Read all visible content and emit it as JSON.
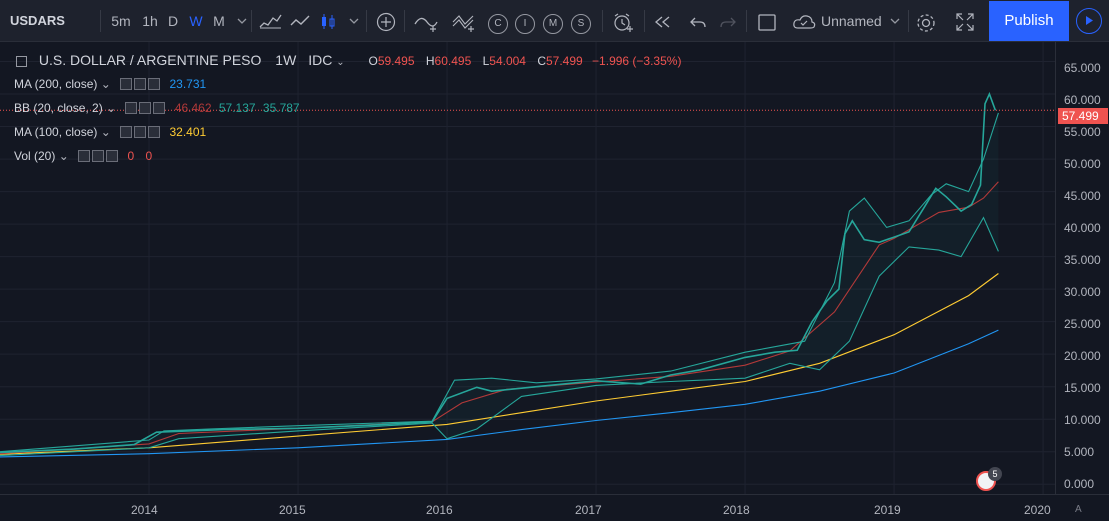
{
  "toolbar": {
    "symbol": "USDARS",
    "intervals": [
      "5m",
      "1h",
      "D",
      "W",
      "M"
    ],
    "active_interval": "W",
    "replay_letters": [
      "C",
      "I",
      "M",
      "S"
    ],
    "layout_name": "Unnamed",
    "publish_label": "Publish"
  },
  "legend": {
    "title": "U.S. DOLLAR / ARGENTINE PESO",
    "interval": "1W",
    "source": "IDC",
    "open_label": "O",
    "open": "59.495",
    "high_label": "H",
    "high": "60.495",
    "low_label": "L",
    "low": "54.004",
    "close_label": "C",
    "close": "57.499",
    "change": "−1.996 (−3.35%)",
    "indicators": [
      {
        "name": "MA (200, close)",
        "values": [
          "23.731"
        ],
        "colors": [
          "#2196f3"
        ]
      },
      {
        "name": "BB (20, close, 2)",
        "values": [
          "46.462",
          "57.137",
          "35.787"
        ],
        "colors": [
          "#b23939",
          "#26a69a",
          "#26a69a"
        ]
      },
      {
        "name": "MA (100, close)",
        "values": [
          "32.401"
        ],
        "colors": [
          "#ffcc33"
        ]
      },
      {
        "name": "Vol (20)",
        "values": [
          "0",
          "0"
        ],
        "colors": [
          "#ef5350",
          "#ef5350"
        ]
      }
    ]
  },
  "price_axis": {
    "labels": [
      "65.000",
      "60.000",
      "55.000",
      "50.000",
      "45.000",
      "40.000",
      "35.000",
      "30.000",
      "25.000",
      "20.000",
      "15.000",
      "10.000",
      "5.000",
      "0.000"
    ],
    "last_price": "57.499"
  },
  "time_axis": {
    "labels": [
      "2014",
      "2015",
      "2016",
      "2017",
      "2018",
      "2019",
      "2020"
    ],
    "auto_label": "A"
  },
  "events": {
    "badge_count": "5"
  },
  "colors": {
    "background": "#131722",
    "up": "#26a69a",
    "down": "#ef5350",
    "ma200": "#2196f3",
    "ma100": "#ffcc33",
    "bb_basis": "#b23939",
    "bb_band": "#26a69a",
    "accent": "#2962ff"
  },
  "chart_data": {
    "type": "line",
    "title": "U.S. DOLLAR / ARGENTINE PESO",
    "xlim": [
      2013.0,
      2020.08
    ],
    "ylim": [
      -1.5,
      68
    ],
    "grid": true,
    "series": [
      {
        "name": "MA (100, close)",
        "color": "#ffcc33",
        "points": [
          [
            2013.0,
            4.6
          ],
          [
            2014.0,
            5.6
          ],
          [
            2015.0,
            7.4
          ],
          [
            2016.0,
            9.2
          ],
          [
            2016.5,
            11.0
          ],
          [
            2017.0,
            12.8
          ],
          [
            2017.5,
            14.3
          ],
          [
            2018.0,
            15.8
          ],
          [
            2018.5,
            18.6
          ],
          [
            2019.0,
            23.0
          ],
          [
            2019.5,
            29.0
          ],
          [
            2019.7,
            32.4
          ]
        ]
      },
      {
        "name": "MA (200, close)",
        "color": "#2196f3",
        "points": [
          [
            2013.0,
            4.2
          ],
          [
            2014.0,
            4.7
          ],
          [
            2015.0,
            5.6
          ],
          [
            2016.0,
            6.9
          ],
          [
            2016.5,
            8.4
          ],
          [
            2017.0,
            9.8
          ],
          [
            2017.5,
            11.0
          ],
          [
            2018.0,
            12.3
          ],
          [
            2018.5,
            14.3
          ],
          [
            2019.0,
            17.1
          ],
          [
            2019.5,
            21.6
          ],
          [
            2019.7,
            23.7
          ]
        ]
      },
      {
        "name": "BB basis",
        "color": "#b23939",
        "points": [
          [
            2013.0,
            4.7
          ],
          [
            2014.0,
            6.2
          ],
          [
            2014.2,
            7.8
          ],
          [
            2015.0,
            8.6
          ],
          [
            2015.9,
            9.6
          ],
          [
            2016.1,
            12.5
          ],
          [
            2016.4,
            14.6
          ],
          [
            2017.0,
            15.7
          ],
          [
            2017.5,
            16.6
          ],
          [
            2018.0,
            18.3
          ],
          [
            2018.3,
            20.5
          ],
          [
            2018.6,
            26.5
          ],
          [
            2018.9,
            36.8
          ],
          [
            2019.0,
            37.8
          ],
          [
            2019.3,
            41.8
          ],
          [
            2019.5,
            42.6
          ],
          [
            2019.6,
            44.0
          ],
          [
            2019.7,
            46.5
          ]
        ]
      },
      {
        "name": "BB upper",
        "color": "#26a69a",
        "points": [
          [
            2013.0,
            5.0
          ],
          [
            2014.0,
            6.8
          ],
          [
            2014.1,
            8.2
          ],
          [
            2014.4,
            8.5
          ],
          [
            2015.0,
            9.0
          ],
          [
            2015.9,
            9.7
          ],
          [
            2016.05,
            16.0
          ],
          [
            2016.3,
            16.3
          ],
          [
            2016.6,
            15.6
          ],
          [
            2017.0,
            16.2
          ],
          [
            2017.5,
            17.4
          ],
          [
            2018.0,
            20.3
          ],
          [
            2018.4,
            22.0
          ],
          [
            2018.6,
            31.0
          ],
          [
            2018.7,
            42.0
          ],
          [
            2018.8,
            44.0
          ],
          [
            2018.95,
            39.5
          ],
          [
            2019.1,
            40.5
          ],
          [
            2019.25,
            44.5
          ],
          [
            2019.35,
            46.2
          ],
          [
            2019.5,
            45.0
          ],
          [
            2019.6,
            50.0
          ],
          [
            2019.7,
            57.1
          ]
        ]
      },
      {
        "name": "BB lower",
        "color": "#26a69a",
        "points": [
          [
            2013.0,
            4.4
          ],
          [
            2014.0,
            5.6
          ],
          [
            2014.2,
            7.0
          ],
          [
            2015.0,
            8.2
          ],
          [
            2015.9,
            9.4
          ],
          [
            2016.0,
            7.0
          ],
          [
            2016.2,
            8.5
          ],
          [
            2016.5,
            13.5
          ],
          [
            2017.0,
            15.2
          ],
          [
            2017.5,
            15.8
          ],
          [
            2018.0,
            16.3
          ],
          [
            2018.3,
            18.6
          ],
          [
            2018.5,
            17.6
          ],
          [
            2018.7,
            22.0
          ],
          [
            2018.9,
            32.0
          ],
          [
            2019.1,
            36.5
          ],
          [
            2019.3,
            36.0
          ],
          [
            2019.45,
            35.0
          ],
          [
            2019.55,
            39.0
          ],
          [
            2019.6,
            41.0
          ],
          [
            2019.7,
            35.8
          ]
        ]
      },
      {
        "name": "Close",
        "color": "#26a69a",
        "points": [
          [
            2013.0,
            4.9
          ],
          [
            2013.5,
            5.4
          ],
          [
            2013.9,
            6.1
          ],
          [
            2014.05,
            8.0
          ],
          [
            2014.5,
            8.4
          ],
          [
            2015.0,
            8.6
          ],
          [
            2015.5,
            9.1
          ],
          [
            2015.9,
            9.6
          ],
          [
            2016.0,
            13.2
          ],
          [
            2016.2,
            14.9
          ],
          [
            2016.3,
            14.3
          ],
          [
            2016.6,
            15.0
          ],
          [
            2017.0,
            15.9
          ],
          [
            2017.3,
            15.4
          ],
          [
            2017.5,
            16.8
          ],
          [
            2017.7,
            17.6
          ],
          [
            2018.0,
            19.5
          ],
          [
            2018.2,
            20.3
          ],
          [
            2018.35,
            20.6
          ],
          [
            2018.45,
            25.0
          ],
          [
            2018.55,
            28.2
          ],
          [
            2018.63,
            30.0
          ],
          [
            2018.67,
            38.5
          ],
          [
            2018.72,
            40.5
          ],
          [
            2018.8,
            37.6
          ],
          [
            2018.9,
            37.2
          ],
          [
            2019.0,
            38.0
          ],
          [
            2019.1,
            38.8
          ],
          [
            2019.2,
            42.5
          ],
          [
            2019.28,
            45.5
          ],
          [
            2019.35,
            44.2
          ],
          [
            2019.45,
            42.0
          ],
          [
            2019.52,
            43.0
          ],
          [
            2019.58,
            46.0
          ],
          [
            2019.61,
            58.5
          ],
          [
            2019.64,
            60.0
          ],
          [
            2019.68,
            57.5
          ]
        ]
      }
    ]
  }
}
